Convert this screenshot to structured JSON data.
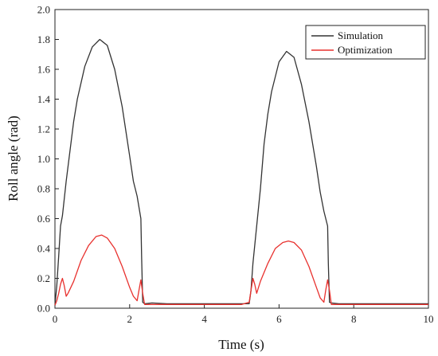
{
  "chart_data": {
    "type": "line",
    "title": "",
    "xlabel": "Time (s)",
    "ylabel": "Roll angle (rad)",
    "xlim": [
      0,
      10
    ],
    "ylim": [
      0,
      2.0
    ],
    "xticks": [
      0,
      2,
      4,
      6,
      8,
      10
    ],
    "yticks": [
      0.0,
      0.2,
      0.4,
      0.6,
      0.8,
      1.0,
      1.2,
      1.4,
      1.6,
      1.8,
      2.0
    ],
    "grid": false,
    "legend_position": "top-right",
    "series": [
      {
        "name": "Simulation",
        "color": "#333333",
        "x": [
          0.0,
          0.05,
          0.1,
          0.15,
          0.2,
          0.3,
          0.4,
          0.5,
          0.6,
          0.8,
          1.0,
          1.2,
          1.4,
          1.6,
          1.8,
          2.0,
          2.1,
          2.2,
          2.3,
          2.32,
          2.35,
          2.4,
          2.6,
          3.0,
          3.5,
          4.0,
          4.5,
          5.0,
          5.2,
          5.25,
          5.3,
          5.4,
          5.5,
          5.6,
          5.7,
          5.8,
          6.0,
          6.2,
          6.4,
          6.6,
          6.8,
          7.0,
          7.1,
          7.2,
          7.3,
          7.32,
          7.35,
          7.4,
          7.6,
          8.0,
          8.5,
          9.0,
          9.5,
          10.0
        ],
        "y": [
          0.02,
          0.15,
          0.35,
          0.55,
          0.62,
          0.85,
          1.05,
          1.25,
          1.4,
          1.62,
          1.75,
          1.8,
          1.76,
          1.6,
          1.35,
          1.02,
          0.85,
          0.75,
          0.6,
          0.35,
          0.04,
          0.03,
          0.035,
          0.03,
          0.03,
          0.03,
          0.03,
          0.03,
          0.03,
          0.12,
          0.3,
          0.55,
          0.8,
          1.1,
          1.3,
          1.45,
          1.65,
          1.72,
          1.68,
          1.5,
          1.25,
          0.95,
          0.78,
          0.65,
          0.55,
          0.3,
          0.04,
          0.035,
          0.03,
          0.03,
          0.03,
          0.03,
          0.03,
          0.03
        ]
      },
      {
        "name": "Optimization",
        "color": "#e8312e",
        "x": [
          0.0,
          0.05,
          0.1,
          0.15,
          0.2,
          0.25,
          0.3,
          0.35,
          0.5,
          0.7,
          0.9,
          1.1,
          1.25,
          1.4,
          1.6,
          1.8,
          2.0,
          2.1,
          2.2,
          2.25,
          2.3,
          2.35,
          2.4,
          2.6,
          3.0,
          3.5,
          4.0,
          4.5,
          5.0,
          5.2,
          5.25,
          5.3,
          5.35,
          5.4,
          5.5,
          5.7,
          5.9,
          6.1,
          6.25,
          6.4,
          6.6,
          6.8,
          7.0,
          7.1,
          7.2,
          7.25,
          7.3,
          7.35,
          7.4,
          7.6,
          8.0,
          8.5,
          9.0,
          9.5,
          10.0
        ],
        "y": [
          0.02,
          0.05,
          0.1,
          0.16,
          0.2,
          0.15,
          0.08,
          0.1,
          0.18,
          0.32,
          0.42,
          0.48,
          0.49,
          0.47,
          0.4,
          0.28,
          0.14,
          0.08,
          0.05,
          0.12,
          0.19,
          0.1,
          0.025,
          0.025,
          0.025,
          0.025,
          0.025,
          0.025,
          0.025,
          0.04,
          0.12,
          0.2,
          0.16,
          0.1,
          0.18,
          0.3,
          0.4,
          0.44,
          0.45,
          0.44,
          0.39,
          0.28,
          0.14,
          0.07,
          0.04,
          0.12,
          0.19,
          0.12,
          0.025,
          0.025,
          0.025,
          0.025,
          0.025,
          0.025,
          0.025
        ]
      }
    ]
  }
}
